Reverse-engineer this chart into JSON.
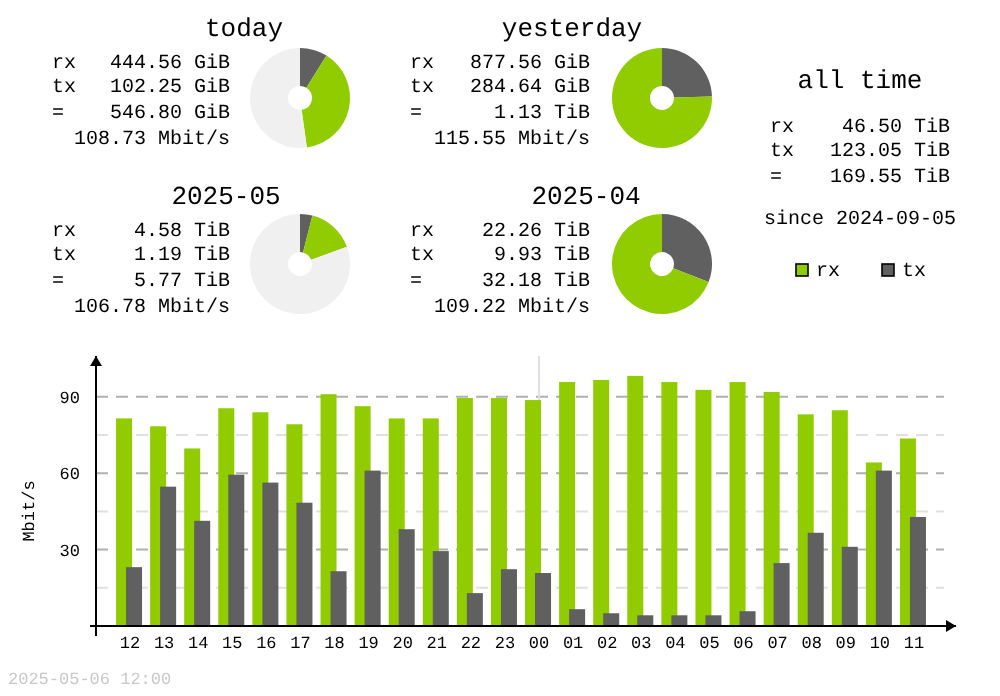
{
  "chart_data": [
    {
      "type": "donut",
      "title": "today",
      "categories": [
        null,
        null,
        null
      ],
      "values": [
        8.9,
        38.9,
        52.2
      ],
      "colors": [
        "#606060",
        "#90cc00",
        "#f0f0f0"
      ],
      "annotations": [
        "rx",
        "444.56 GiB",
        "tx",
        "102.25 GiB",
        "=",
        "546.80 GiB",
        "108.73 Mbit/s"
      ]
    },
    {
      "type": "donut",
      "title": "yesterday",
      "categories": [
        null,
        null
      ],
      "values": [
        24.5,
        75.5
      ],
      "colors": [
        "#606060",
        "#90cc00"
      ],
      "annotations": [
        "rx",
        "877.56 GiB",
        "tx",
        "284.64 GiB",
        "=",
        "1.13 TiB",
        "115.55 Mbit/s"
      ]
    },
    {
      "type": "other",
      "title": "all time",
      "annotations": [
        "rx",
        "46.50 TiB",
        "tx",
        "123.05 TiB",
        "=",
        "169.55 TiB",
        "since 2024-09-05"
      ]
    },
    {
      "type": "donut",
      "title": "2025-05",
      "categories": [
        null,
        null,
        null
      ],
      "values": [
        4.0,
        15.4,
        80.6
      ],
      "colors": [
        "#606060",
        "#90cc00",
        "#f0f0f0"
      ],
      "annotations": [
        "rx",
        "4.58 TiB",
        "tx",
        "1.19 TiB",
        "=",
        "5.77 TiB",
        "106.78 Mbit/s"
      ]
    },
    {
      "type": "donut",
      "title": "2025-04",
      "categories": [
        null,
        null
      ],
      "values": [
        30.9,
        69.1
      ],
      "colors": [
        "#606060",
        "#90cc00"
      ],
      "annotations": [
        "rx",
        "22.26 TiB",
        "tx",
        "9.93 TiB",
        "=",
        "32.18 TiB",
        "109.22 Mbit/s"
      ]
    },
    {
      "type": "bar",
      "ylabel": "Mbit/s",
      "categories": [
        "12",
        "13",
        "14",
        "15",
        "16",
        "17",
        "18",
        "19",
        "20",
        "21",
        "22",
        "23",
        "00",
        "01",
        "02",
        "03",
        "04",
        "05",
        "06",
        "07",
        "08",
        "09",
        "10",
        "11"
      ],
      "series": [
        {
          "name": "rx",
          "color": "#90cc00",
          "values": [
            81.5,
            78.4,
            69.7,
            85.5,
            83.9,
            79.2,
            91,
            86.3,
            81.5,
            81.5,
            89.5,
            89.5,
            88.7,
            95.8,
            96.6,
            98.2,
            95.8,
            92.7,
            95.8,
            91.9,
            83.1,
            84.7,
            64.2,
            73.6
          ]
        },
        {
          "name": "tx",
          "color": "#606060",
          "values": [
            23.1,
            54.7,
            41.3,
            59.4,
            56.3,
            48.4,
            21.5,
            61,
            38,
            29.4,
            12.9,
            22.3,
            20.8,
            6.6,
            5,
            4.2,
            4.2,
            4.2,
            5.8,
            24.7,
            36.6,
            31.1,
            61,
            42.8
          ]
        }
      ],
      "ylim": [
        0,
        106
      ],
      "yticks": [
        {
          "value": 15,
          "label": null
        },
        30,
        {
          "value": 45,
          "label": null
        },
        60,
        {
          "value": 75,
          "label": null
        },
        90
      ],
      "grid": "y",
      "legend": "top right",
      "ref_lines": [
        {
          "axis": "x",
          "value": "00",
          "color": "#e0e0e0"
        }
      ],
      "annotations": [
        "2025-05-06 12:00"
      ]
    }
  ]
}
